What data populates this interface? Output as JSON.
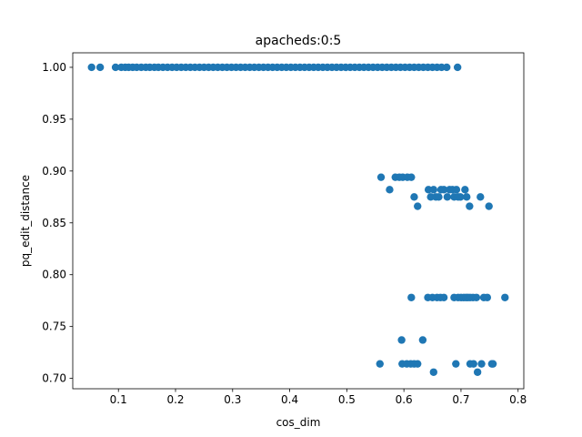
{
  "chart_data": {
    "type": "scatter",
    "title": "apacheds:0:5",
    "xlabel": "cos_dim",
    "ylabel": "pq_edit_distance",
    "xlim": [
      0.02,
      0.81
    ],
    "ylim": [
      0.69,
      1.014
    ],
    "x_ticks": [
      0.1,
      0.2,
      0.3,
      0.4,
      0.5,
      0.6,
      0.7,
      0.8
    ],
    "x_tick_labels": [
      "0.1",
      "0.2",
      "0.3",
      "0.4",
      "0.5",
      "0.6",
      "0.7",
      "0.8"
    ],
    "y_ticks": [
      0.7,
      0.75,
      0.8,
      0.85,
      0.9,
      0.95,
      1.0
    ],
    "y_tick_labels": [
      "0.70",
      "0.75",
      "0.80",
      "0.85",
      "0.90",
      "0.95",
      "1.00"
    ],
    "grid": false,
    "marker_color": "#1f77b4",
    "series": [
      {
        "name": "points",
        "points": [
          [
            0.053,
            1.0
          ],
          [
            0.068,
            1.0
          ],
          [
            0.095,
            1.0
          ],
          [
            0.105,
            1.0
          ],
          [
            0.112,
            1.0
          ],
          [
            0.118,
            1.0
          ],
          [
            0.125,
            1.0
          ],
          [
            0.132,
            1.0
          ],
          [
            0.14,
            1.0
          ],
          [
            0.148,
            1.0
          ],
          [
            0.155,
            1.0
          ],
          [
            0.163,
            1.0
          ],
          [
            0.17,
            1.0
          ],
          [
            0.178,
            1.0
          ],
          [
            0.186,
            1.0
          ],
          [
            0.194,
            1.0
          ],
          [
            0.202,
            1.0
          ],
          [
            0.21,
            1.0
          ],
          [
            0.218,
            1.0
          ],
          [
            0.226,
            1.0
          ],
          [
            0.234,
            1.0
          ],
          [
            0.242,
            1.0
          ],
          [
            0.25,
            1.0
          ],
          [
            0.258,
            1.0
          ],
          [
            0.266,
            1.0
          ],
          [
            0.274,
            1.0
          ],
          [
            0.282,
            1.0
          ],
          [
            0.29,
            1.0
          ],
          [
            0.298,
            1.0
          ],
          [
            0.306,
            1.0
          ],
          [
            0.314,
            1.0
          ],
          [
            0.322,
            1.0
          ],
          [
            0.33,
            1.0
          ],
          [
            0.338,
            1.0
          ],
          [
            0.346,
            1.0
          ],
          [
            0.354,
            1.0
          ],
          [
            0.362,
            1.0
          ],
          [
            0.37,
            1.0
          ],
          [
            0.378,
            1.0
          ],
          [
            0.386,
            1.0
          ],
          [
            0.394,
            1.0
          ],
          [
            0.402,
            1.0
          ],
          [
            0.41,
            1.0
          ],
          [
            0.418,
            1.0
          ],
          [
            0.426,
            1.0
          ],
          [
            0.434,
            1.0
          ],
          [
            0.442,
            1.0
          ],
          [
            0.45,
            1.0
          ],
          [
            0.458,
            1.0
          ],
          [
            0.466,
            1.0
          ],
          [
            0.474,
            1.0
          ],
          [
            0.482,
            1.0
          ],
          [
            0.49,
            1.0
          ],
          [
            0.498,
            1.0
          ],
          [
            0.506,
            1.0
          ],
          [
            0.514,
            1.0
          ],
          [
            0.522,
            1.0
          ],
          [
            0.53,
            1.0
          ],
          [
            0.538,
            1.0
          ],
          [
            0.546,
            1.0
          ],
          [
            0.554,
            1.0
          ],
          [
            0.562,
            1.0
          ],
          [
            0.57,
            1.0
          ],
          [
            0.578,
            1.0
          ],
          [
            0.586,
            1.0
          ],
          [
            0.594,
            1.0
          ],
          [
            0.602,
            1.0
          ],
          [
            0.61,
            1.0
          ],
          [
            0.618,
            1.0
          ],
          [
            0.626,
            1.0
          ],
          [
            0.634,
            1.0
          ],
          [
            0.642,
            1.0
          ],
          [
            0.65,
            1.0
          ],
          [
            0.658,
            1.0
          ],
          [
            0.666,
            1.0
          ],
          [
            0.675,
            1.0
          ],
          [
            0.694,
            1.0
          ],
          [
            0.56,
            0.894
          ],
          [
            0.575,
            0.882
          ],
          [
            0.585,
            0.894
          ],
          [
            0.592,
            0.894
          ],
          [
            0.598,
            0.894
          ],
          [
            0.606,
            0.894
          ],
          [
            0.613,
            0.894
          ],
          [
            0.618,
            0.875
          ],
          [
            0.624,
            0.866
          ],
          [
            0.643,
            0.882
          ],
          [
            0.647,
            0.875
          ],
          [
            0.652,
            0.882
          ],
          [
            0.656,
            0.875
          ],
          [
            0.661,
            0.875
          ],
          [
            0.665,
            0.882
          ],
          [
            0.67,
            0.882
          ],
          [
            0.676,
            0.875
          ],
          [
            0.68,
            0.882
          ],
          [
            0.685,
            0.882
          ],
          [
            0.688,
            0.875
          ],
          [
            0.692,
            0.882
          ],
          [
            0.695,
            0.875
          ],
          [
            0.699,
            0.875
          ],
          [
            0.707,
            0.882
          ],
          [
            0.71,
            0.875
          ],
          [
            0.715,
            0.866
          ],
          [
            0.734,
            0.875
          ],
          [
            0.749,
            0.866
          ],
          [
            0.613,
            0.778
          ],
          [
            0.642,
            0.778
          ],
          [
            0.65,
            0.778
          ],
          [
            0.658,
            0.778
          ],
          [
            0.664,
            0.778
          ],
          [
            0.67,
            0.778
          ],
          [
            0.688,
            0.778
          ],
          [
            0.695,
            0.778
          ],
          [
            0.7,
            0.778
          ],
          [
            0.705,
            0.778
          ],
          [
            0.709,
            0.778
          ],
          [
            0.712,
            0.778
          ],
          [
            0.716,
            0.778
          ],
          [
            0.721,
            0.778
          ],
          [
            0.727,
            0.778
          ],
          [
            0.74,
            0.778
          ],
          [
            0.746,
            0.778
          ],
          [
            0.777,
            0.778
          ],
          [
            0.596,
            0.737
          ],
          [
            0.633,
            0.737
          ],
          [
            0.558,
            0.714
          ],
          [
            0.597,
            0.714
          ],
          [
            0.605,
            0.714
          ],
          [
            0.612,
            0.714
          ],
          [
            0.618,
            0.714
          ],
          [
            0.624,
            0.714
          ],
          [
            0.652,
            0.706
          ],
          [
            0.691,
            0.714
          ],
          [
            0.716,
            0.714
          ],
          [
            0.722,
            0.714
          ],
          [
            0.729,
            0.706
          ],
          [
            0.736,
            0.714
          ],
          [
            0.754,
            0.714
          ],
          [
            0.756,
            0.714
          ]
        ]
      }
    ]
  }
}
